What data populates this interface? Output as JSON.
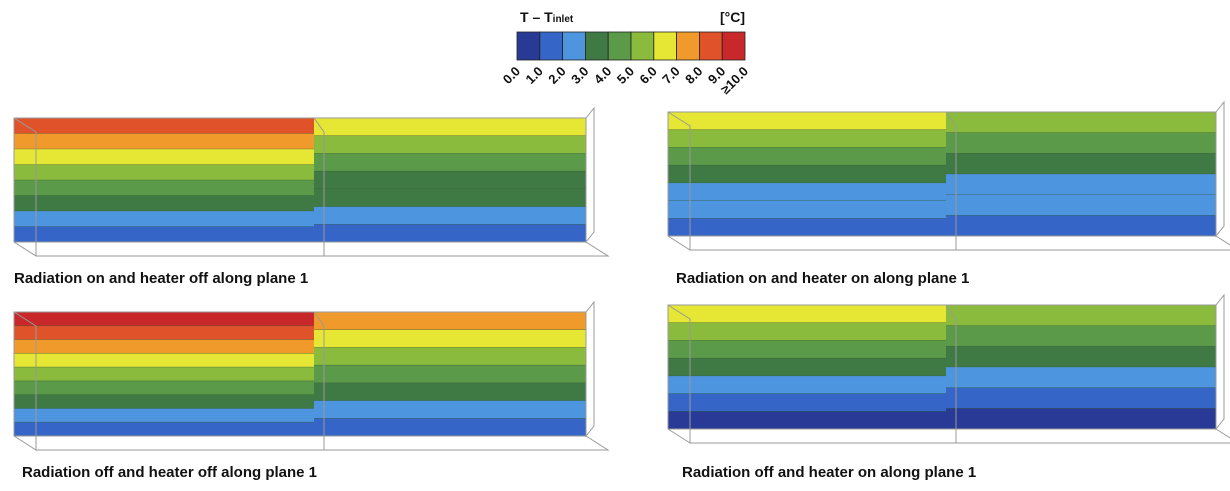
{
  "legend": {
    "title": "T – T",
    "title_subscript": "inlet",
    "unit": "[°C]",
    "labels": [
      "0.0",
      "1.0",
      "2.0",
      "3.0",
      "4.0",
      "5.0",
      "6.0",
      "7.0",
      "8.0",
      "9.0",
      "≥10.0"
    ],
    "colors": [
      "#283a96",
      "#3565c6",
      "#4e95e0",
      "#3f7a45",
      "#5a9a48",
      "#8abb3c",
      "#e6e634",
      "#ef9a2a",
      "#e0532a",
      "#c8282a"
    ]
  },
  "panels": [
    {
      "caption": "Radiation on and heater off along plane 1"
    },
    {
      "caption": "Radiation on and heater on along plane 1"
    },
    {
      "caption": "Radiation off and heater off along plane 1"
    },
    {
      "caption": "Radiation off and heater on along plane 1"
    }
  ]
}
